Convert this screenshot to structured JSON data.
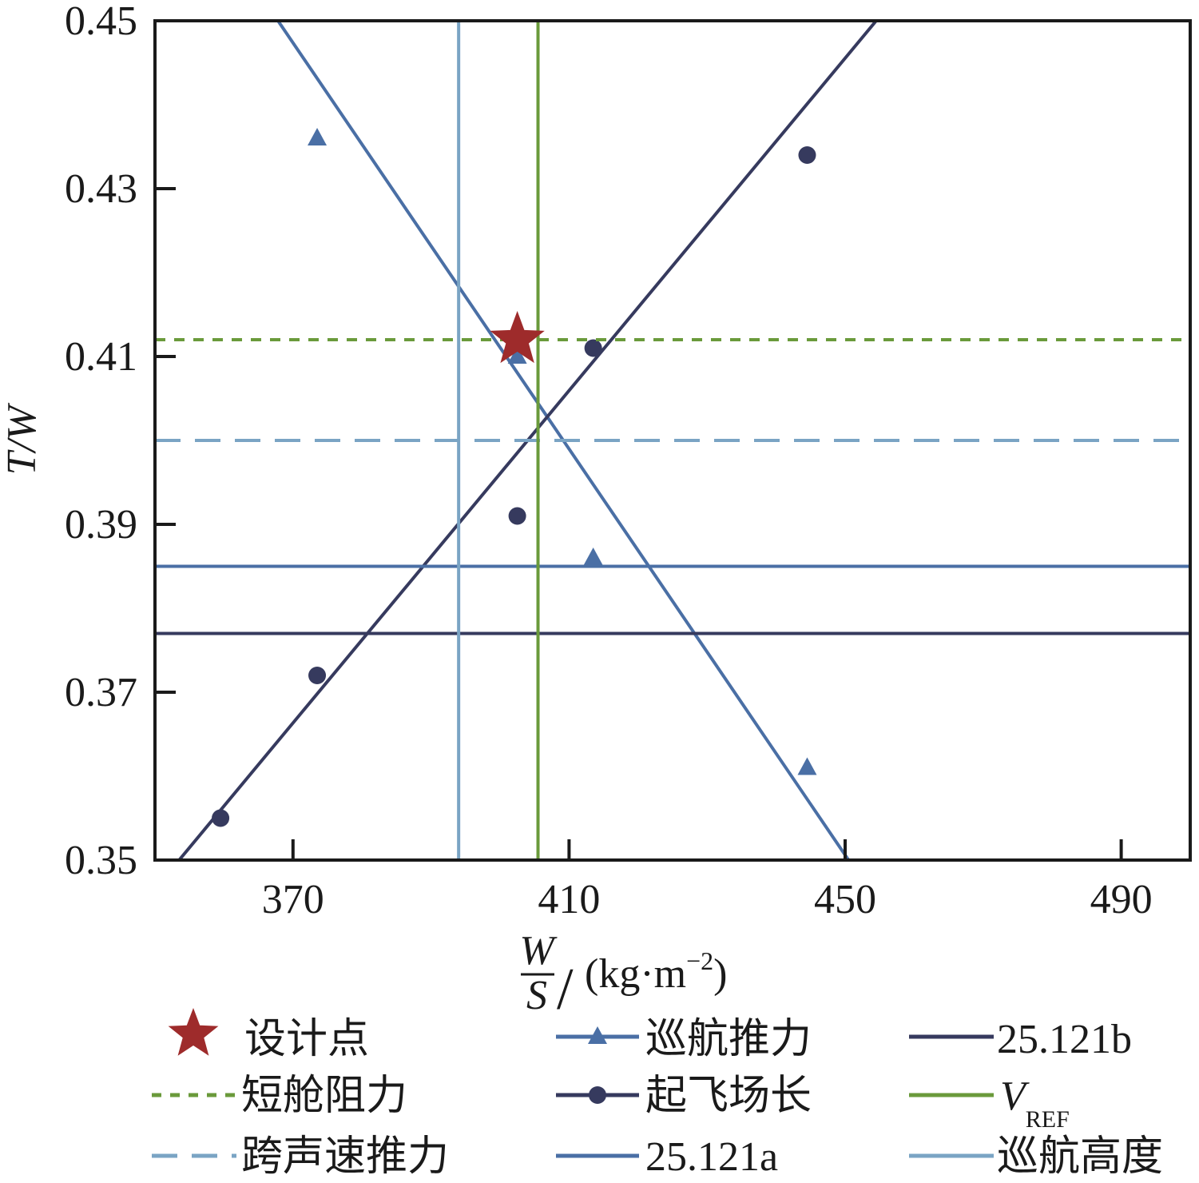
{
  "chart_data": {
    "type": "line",
    "xlim": [
      350,
      500
    ],
    "ylim": [
      0.35,
      0.45
    ],
    "x_ticks": [
      370,
      410,
      450,
      490
    ],
    "y_ticks": [
      0.35,
      0.37,
      0.39,
      0.41,
      0.43,
      0.45
    ],
    "x_tick_labels": [
      "370",
      "410",
      "450",
      "490"
    ],
    "y_tick_labels": [
      "0.35",
      "0.37",
      "0.39",
      "0.41",
      "0.43",
      "0.45"
    ],
    "ylabel": "T/W",
    "xlabel": {
      "numerator": "W",
      "denominator": "S",
      "slash": "/",
      "unit": "(kg·m",
      "unit_exp": "−2",
      "unit_close": ")"
    },
    "grid": false,
    "legend_position": "bottom",
    "design_point": {
      "name": "设计点",
      "x": 402.5,
      "y": 0.412,
      "color": "#9e2b2b"
    },
    "series": [
      {
        "name": "巡航推力",
        "kind": "line",
        "color": "#4a6fa5",
        "marker": "triangle",
        "points": [
          [
            367,
            0.451
          ],
          [
            450.5,
            0.35
          ]
        ],
        "marker_points": [
          [
            373.5,
            0.436
          ],
          [
            402.5,
            0.41
          ],
          [
            413.5,
            0.386
          ],
          [
            444.5,
            0.361
          ]
        ]
      },
      {
        "name": "起飞场长",
        "kind": "line",
        "color": "#363a5e",
        "marker": "circle",
        "points": [
          [
            353.5,
            0.35
          ],
          [
            454.5,
            0.45
          ]
        ],
        "marker_points": [
          [
            359.5,
            0.355
          ],
          [
            373.5,
            0.372
          ],
          [
            402.5,
            0.391
          ],
          [
            413.5,
            0.411
          ],
          [
            444.5,
            0.434
          ]
        ]
      },
      {
        "name": "短舱阻力",
        "kind": "hline",
        "color": "#6a9a3b",
        "dash": "dotted",
        "y": 0.412
      },
      {
        "name": "跨声速推力",
        "kind": "hline",
        "color": "#7aa4c4",
        "dash": "dashed",
        "y": 0.4
      },
      {
        "name": "25.121a",
        "kind": "hline",
        "color": "#4a6fa5",
        "y": 0.385
      },
      {
        "name": "25.121b",
        "kind": "hline",
        "color": "#363a5e",
        "y": 0.377
      },
      {
        "name": "V",
        "name_sub": "REF",
        "kind": "vline",
        "color": "#6a9a3b",
        "x": 405.5
      },
      {
        "name": "巡航高度",
        "kind": "vline",
        "color": "#7aa4c4",
        "x": 394
      }
    ]
  }
}
